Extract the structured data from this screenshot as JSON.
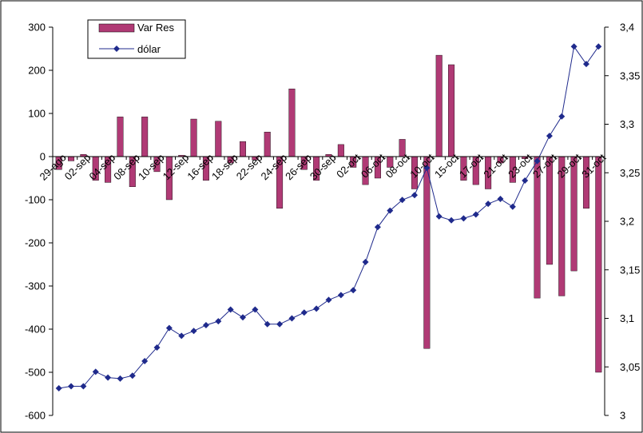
{
  "chart_data": {
    "type": "bar+line",
    "legend": {
      "placement": "top-left-inside",
      "entries": [
        "Var Res",
        "dólar"
      ]
    },
    "x_tick_labels": [
      "29-ago",
      "02-sep",
      "04-sep",
      "08-sep",
      "10-sep",
      "12-sep",
      "16-sep",
      "18-sep",
      "22-sep",
      "24-sep",
      "26-sep",
      "30-sep",
      "02-oct",
      "06-oct",
      "08-oct",
      "10-oct",
      "15-oct",
      "17-oct",
      "21-oct",
      "23-oct",
      "27-oct",
      "29-oct",
      "31-oct"
    ],
    "y_left": {
      "min": -600,
      "max": 300,
      "step": 100
    },
    "y_right": {
      "min": 3,
      "max": 3.4,
      "step": 0.05,
      "tick_labels": [
        "3",
        "3,05",
        "3,1",
        "3,15",
        "3,2",
        "3,25",
        "3,3",
        "3,35",
        "3,4"
      ]
    },
    "grid": false,
    "series": [
      {
        "name": "Var Res",
        "type": "bar",
        "axis": "left",
        "color": "#B03A75",
        "values": [
          -30,
          -10,
          5,
          -55,
          -60,
          92,
          -70,
          92,
          -35,
          -100,
          3,
          87,
          -55,
          82,
          -15,
          35,
          -8,
          57,
          -120,
          157,
          -30,
          -55,
          5,
          28,
          -25,
          -65,
          -50,
          -25,
          40,
          -75,
          -445,
          235,
          213,
          -55,
          -65,
          -75,
          -15,
          -60,
          -5,
          -328,
          -250,
          -323,
          -265,
          -120,
          -500
        ]
      },
      {
        "name": "dólar",
        "type": "line",
        "axis": "right",
        "color": "#1F2A8C",
        "values": [
          3.028,
          3.03,
          3.03,
          3.045,
          3.039,
          3.038,
          3.041,
          3.056,
          3.07,
          3.09,
          3.082,
          3.087,
          3.093,
          3.097,
          3.109,
          3.101,
          3.109,
          3.094,
          3.094,
          3.1,
          3.106,
          3.11,
          3.119,
          3.124,
          3.129,
          3.158,
          3.194,
          3.211,
          3.222,
          3.227,
          3.255,
          3.205,
          3.201,
          3.203,
          3.207,
          3.218,
          3.223,
          3.215,
          3.242,
          3.262,
          3.288,
          3.308,
          3.38,
          3.362,
          3.38
        ]
      }
    ]
  }
}
